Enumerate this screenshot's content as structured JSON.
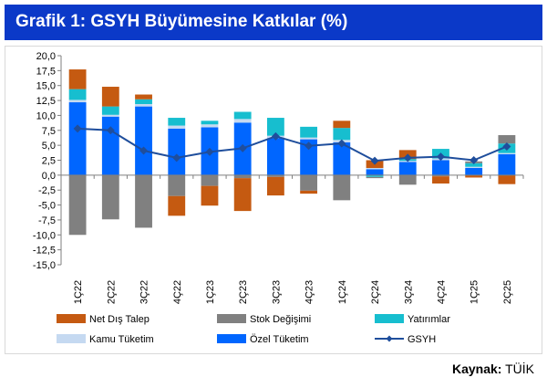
{
  "header": {
    "title": "Grafik 1: GSYH Büyümesine Katkılar (%)"
  },
  "footer": {
    "source_label": "Kaynak",
    "source_value": "TÜİK"
  },
  "colors": {
    "header_bg": "#0b39c8",
    "Net Dış Talep": "#c55a11",
    "Stok Değişimi": "#808080",
    "Yatırımlar": "#17becf",
    "Kamu Tüketim": "#c5d9f1",
    "Özel Tüketim": "#0066ff",
    "GSYH": "#1f4e9c"
  },
  "chart_data": {
    "type": "bar",
    "stacked": true,
    "categories": [
      "1Ç22",
      "2Ç22",
      "3Ç22",
      "4Ç22",
      "1Ç23",
      "2Ç23",
      "3Ç23",
      "4Ç23",
      "1Ç24",
      "2Ç24",
      "3Ç24",
      "4Ç24",
      "1Ç25",
      "2Ç25"
    ],
    "ylim": [
      -15,
      20
    ],
    "yticks": [
      "-15,0",
      "-12,5",
      "-10,0",
      "-7,5",
      "-5,0",
      "-2,5",
      "0,0",
      "2,5",
      "5,0",
      "7,5",
      "10,0",
      "12,5",
      "15,0",
      "17,5",
      "20,0"
    ],
    "grid": false,
    "legend_position": "bottom",
    "series": [
      {
        "name": "Özel Tüketim",
        "kind": "bar",
        "values": [
          12.2,
          9.8,
          11.5,
          7.8,
          8.0,
          8.8,
          6.2,
          6.0,
          5.5,
          1.0,
          2.2,
          2.5,
          1.2,
          3.5
        ]
      },
      {
        "name": "Kamu Tüketim",
        "kind": "bar",
        "values": [
          0.4,
          0.3,
          0.4,
          0.5,
          0.5,
          0.6,
          0.4,
          0.3,
          0.4,
          0.2,
          0.2,
          0.3,
          0.2,
          0.2
        ]
      },
      {
        "name": "Yatırımlar",
        "kind": "bar",
        "values": [
          1.8,
          1.4,
          0.8,
          1.3,
          0.6,
          1.2,
          3.0,
          1.8,
          2.0,
          -0.3,
          0.3,
          1.6,
          0.6,
          1.6
        ]
      },
      {
        "name": "Stok Değişimi",
        "kind": "bar",
        "values": [
          -10.0,
          -7.4,
          -8.8,
          -3.5,
          -1.8,
          -0.5,
          -0.3,
          -2.6,
          -4.2,
          -0.2,
          -1.6,
          -0.2,
          0.3,
          1.4
        ]
      },
      {
        "name": "Net Dış Talep",
        "kind": "bar",
        "values": [
          3.3,
          3.3,
          0.8,
          -3.3,
          -3.3,
          -5.5,
          -3.1,
          -0.5,
          1.2,
          1.3,
          1.5,
          -1.2,
          -0.4,
          -1.5
        ]
      },
      {
        "name": "GSYH",
        "kind": "line",
        "values": [
          7.8,
          7.5,
          4.1,
          2.9,
          3.9,
          4.5,
          6.5,
          4.9,
          5.3,
          2.4,
          2.9,
          3.1,
          2.5,
          4.8
        ]
      }
    ],
    "legend_order": [
      "Net Dış Talep",
      "Stok Değişimi",
      "Yatırımlar",
      "Kamu Tüketim",
      "Özel Tüketim",
      "GSYH"
    ]
  }
}
